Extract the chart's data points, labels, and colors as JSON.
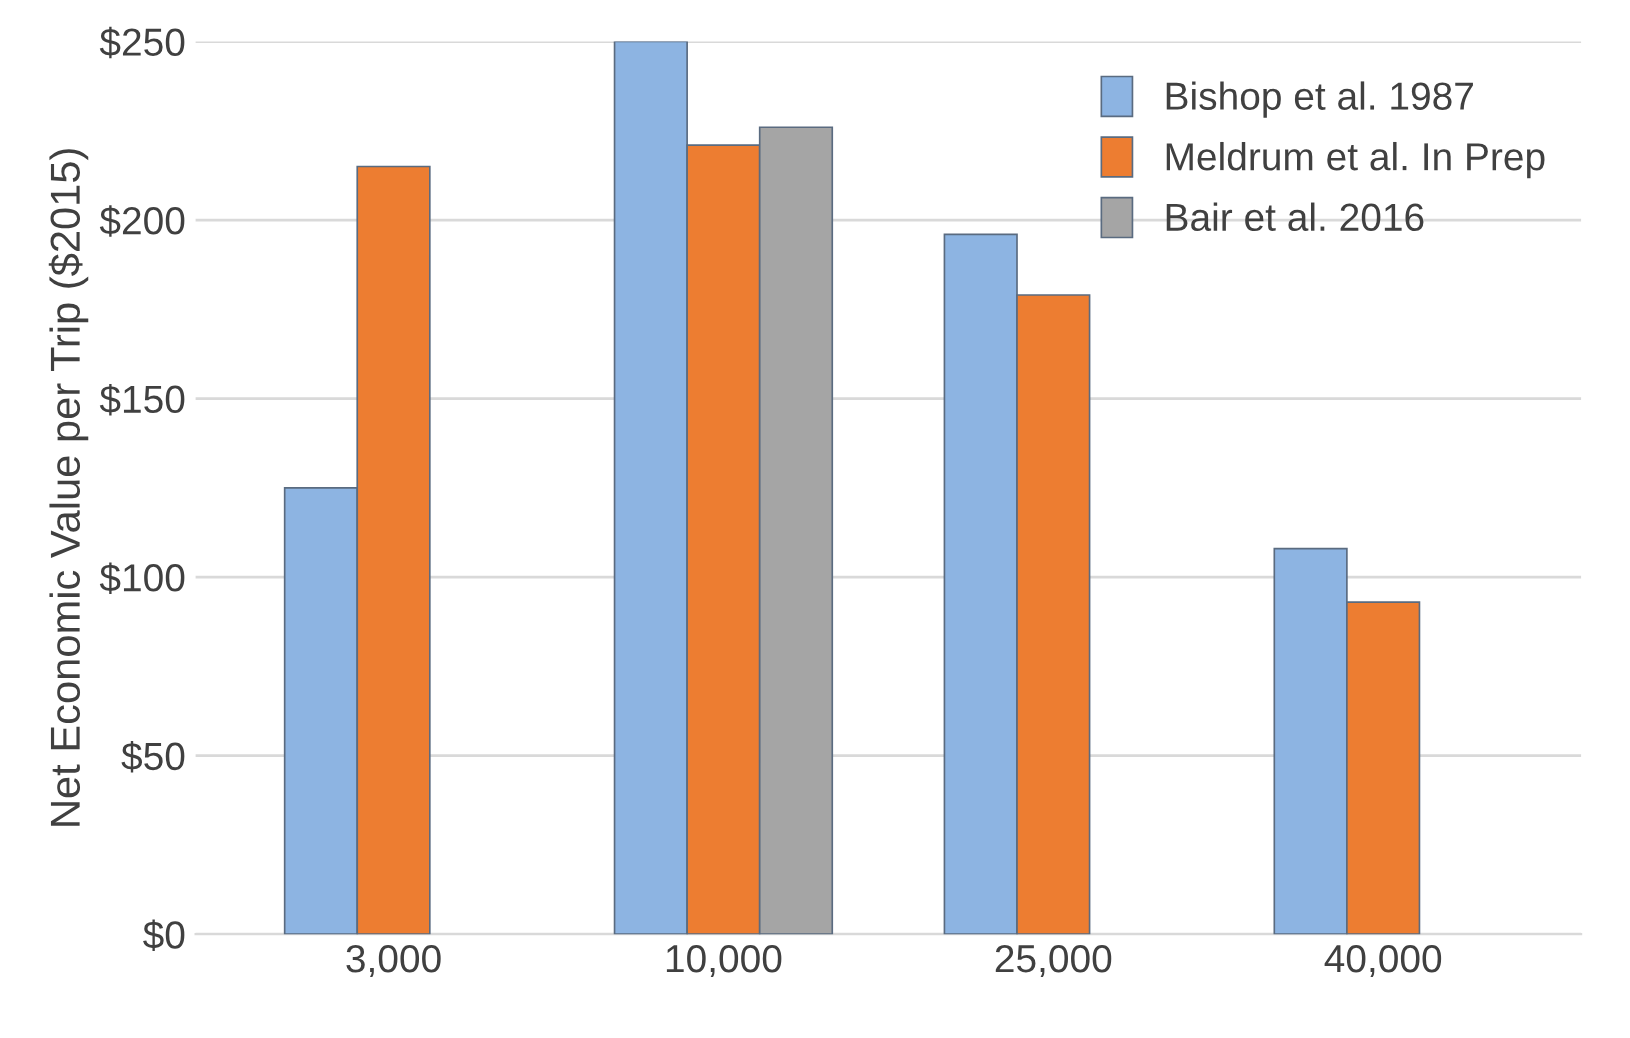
{
  "chart_data": {
    "type": "bar",
    "ylabel": "Net Economic Value per Trip ($2015)",
    "categories": [
      "3,000",
      "10,000",
      "25,000",
      "40,000"
    ],
    "series": [
      {
        "name": "Bishop et al. 1987",
        "color": "#8db4e2",
        "values": [
          125,
          250,
          196,
          108
        ]
      },
      {
        "name": "Meldrum et al. In Prep",
        "color": "#ed7d31",
        "values": [
          215,
          221,
          179,
          93
        ]
      },
      {
        "name": "Bair et al. 2016",
        "color": "#a5a5a5",
        "values": [
          null,
          226,
          null,
          null
        ]
      }
    ],
    "ylim": [
      0,
      250
    ],
    "yticks": [
      {
        "value": 0,
        "label": "$0"
      },
      {
        "value": 50,
        "label": "$50"
      },
      {
        "value": 100,
        "label": "$100"
      },
      {
        "value": 150,
        "label": "$150"
      },
      {
        "value": 200,
        "label": "$200"
      },
      {
        "value": 250,
        "label": "$250"
      }
    ],
    "grid": "y",
    "legend": "top right"
  }
}
